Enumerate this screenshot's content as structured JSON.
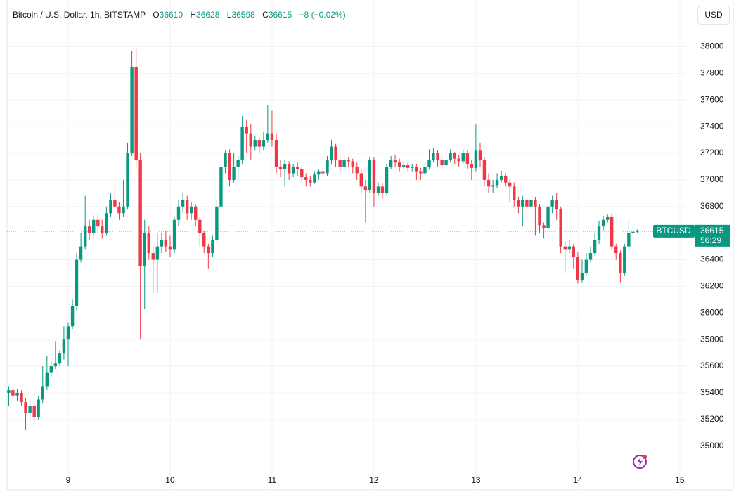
{
  "chart_data": {
    "type": "candlestick",
    "title": "Bitcoin / U.S. Dollar, 1h, BITSTAMP",
    "ohlc_labels": [
      "O",
      "H",
      "L",
      "C"
    ],
    "change": "−8 (−0.02%)",
    "currency": "USD",
    "symbol_tag": "BTCUSD",
    "countdown": "56:29",
    "up_color": "#089981",
    "down_color": "#f23645",
    "grid": true,
    "xlim": [
      8.4,
      15.07
    ],
    "xticks": [
      9,
      10,
      11,
      12,
      13,
      14,
      15
    ],
    "ylim": [
      34840,
      38140
    ],
    "yticks": [
      35000,
      35200,
      35400,
      35600,
      35800,
      36000,
      36200,
      36400,
      36600,
      36800,
      37000,
      37200,
      37400,
      37600,
      37800,
      38000
    ],
    "x": [
      8.417,
      8.458,
      8.5,
      8.542,
      8.583,
      8.625,
      8.667,
      8.708,
      8.75,
      8.792,
      8.833,
      8.875,
      8.917,
      8.958,
      9,
      9.042,
      9.083,
      9.125,
      9.167,
      9.208,
      9.25,
      9.292,
      9.333,
      9.375,
      9.417,
      9.458,
      9.5,
      9.542,
      9.583,
      9.625,
      9.667,
      9.708,
      9.75,
      9.792,
      9.833,
      9.875,
      9.917,
      9.958,
      10,
      10.042,
      10.083,
      10.125,
      10.167,
      10.208,
      10.25,
      10.292,
      10.333,
      10.375,
      10.417,
      10.458,
      10.5,
      10.542,
      10.583,
      10.625,
      10.667,
      10.708,
      10.75,
      10.792,
      10.833,
      10.875,
      10.917,
      10.958,
      11,
      11.042,
      11.083,
      11.125,
      11.167,
      11.208,
      11.25,
      11.292,
      11.333,
      11.375,
      11.417,
      11.458,
      11.5,
      11.542,
      11.583,
      11.625,
      11.667,
      11.708,
      11.75,
      11.792,
      11.833,
      11.875,
      11.917,
      11.958,
      12,
      12.042,
      12.083,
      12.125,
      12.167,
      12.208,
      12.25,
      12.292,
      12.333,
      12.375,
      12.417,
      12.458,
      12.5,
      12.542,
      12.583,
      12.625,
      12.667,
      12.708,
      12.75,
      12.792,
      12.833,
      12.875,
      12.917,
      12.958,
      13,
      13.042,
      13.083,
      13.125,
      13.167,
      13.208,
      13.25,
      13.292,
      13.333,
      13.375,
      13.417,
      13.458,
      13.5,
      13.542,
      13.583,
      13.625,
      13.667,
      13.708,
      13.75,
      13.792,
      13.833,
      13.875,
      13.917,
      13.958,
      14,
      14.042,
      14.083,
      14.125,
      14.167,
      14.208,
      14.25,
      14.292,
      14.333,
      14.375,
      14.417,
      14.458,
      14.5,
      14.542,
      14.583
    ],
    "open": [
      35400,
      35420,
      35380,
      35400,
      35330,
      35250,
      35300,
      35220,
      35350,
      35450,
      35550,
      35600,
      35620,
      35700,
      35800,
      35900,
      36050,
      36400,
      36500,
      36650,
      36600,
      36700,
      36650,
      36600,
      36750,
      36850,
      36800,
      36750,
      36800,
      37200,
      37850,
      37150,
      36350,
      36600,
      36450,
      36400,
      36500,
      36550,
      36500,
      36480,
      36700,
      36800,
      36850,
      36750,
      36800,
      36700,
      36600,
      36500,
      36450,
      36550,
      36800,
      37100,
      37200,
      37000,
      37100,
      37150,
      37400,
      37350,
      37250,
      37300,
      37250,
      37300,
      37350,
      37300,
      37100,
      37080,
      37120,
      37050,
      37100,
      37080,
      37020,
      37000,
      36980,
      37040,
      37060,
      37050,
      37150,
      37250,
      37150,
      37100,
      37150,
      37140,
      37100,
      37050,
      36950,
      36920,
      37150,
      36900,
      36950,
      36900,
      37100,
      37150,
      37130,
      37100,
      37110,
      37090,
      37100,
      37060,
      37050,
      37100,
      37150,
      37200,
      37150,
      37110,
      37150,
      37200,
      37160,
      37140,
      37200,
      37120,
      37090,
      37220,
      37150,
      37000,
      36950,
      36960,
      37000,
      37030,
      36980,
      36950,
      36850,
      36800,
      36850,
      36800,
      36850,
      36800,
      36660,
      36640,
      36800,
      36850,
      36780,
      36500,
      36480,
      36500,
      36420,
      36250,
      36300,
      36400,
      36450,
      36550,
      36650,
      36700,
      36720,
      36500,
      36450,
      36300,
      36500,
      36600,
      36610
    ],
    "high": [
      35450,
      35440,
      35430,
      35420,
      35360,
      35350,
      35320,
      35380,
      35600,
      35680,
      35640,
      35790,
      35720,
      35900,
      35930,
      36100,
      36450,
      36600,
      36880,
      36700,
      36730,
      36750,
      36700,
      36800,
      36900,
      36950,
      36830,
      37000,
      37280,
      37970,
      37980,
      37200,
      36700,
      36650,
      36500,
      36600,
      36600,
      36620,
      36580,
      36720,
      36850,
      36900,
      36880,
      36830,
      36820,
      36720,
      36620,
      36520,
      36580,
      36850,
      37150,
      37220,
      37230,
      37200,
      37180,
      37480,
      37450,
      37420,
      37330,
      37320,
      37360,
      37560,
      37520,
      37350,
      37150,
      37150,
      37140,
      37120,
      37130,
      37100,
      37050,
      37030,
      37060,
      37080,
      37090,
      37180,
      37300,
      37270,
      37180,
      37180,
      37170,
      37160,
      37130,
      37080,
      37000,
      37170,
      37170,
      36980,
      36980,
      37120,
      37180,
      37190,
      37160,
      37140,
      37130,
      37120,
      37120,
      37090,
      37130,
      37230,
      37240,
      37220,
      37180,
      37200,
      37230,
      37210,
      37190,
      37230,
      37220,
      37150,
      37420,
      37280,
      37170,
      37050,
      37000,
      37050,
      37070,
      37050,
      37000,
      36980,
      36870,
      36880,
      36860,
      36920,
      36870,
      36820,
      36680,
      36830,
      36880,
      36900,
      36800,
      36540,
      36550,
      36520,
      36460,
      36400,
      36450,
      36500,
      36600,
      36690,
      36730,
      36740,
      36750,
      36520,
      36470,
      36520,
      36700,
      36690,
      36628
    ],
    "low": [
      35300,
      35350,
      35340,
      35300,
      35120,
      35200,
      35190,
      35200,
      35320,
      35420,
      35520,
      35580,
      35600,
      35650,
      35600,
      35880,
      36020,
      36380,
      36480,
      36550,
      36560,
      36600,
      36560,
      36580,
      36720,
      36780,
      36700,
      36720,
      36780,
      37180,
      37100,
      35800,
      36030,
      36400,
      36150,
      36150,
      36450,
      36460,
      36420,
      36450,
      36650,
      36750,
      36700,
      36700,
      36650,
      36500,
      36450,
      36330,
      36420,
      36530,
      36780,
      37050,
      36950,
      36980,
      37000,
      37120,
      37200,
      37150,
      37220,
      37200,
      37220,
      37280,
      37250,
      37050,
      37020,
      36950,
      37000,
      37020,
      37030,
      36980,
      36950,
      36950,
      36970,
      37000,
      37020,
      37030,
      37120,
      37100,
      37050,
      37080,
      37100,
      37050,
      37000,
      36900,
      36680,
      36900,
      36800,
      36880,
      36860,
      36880,
      37080,
      37100,
      37060,
      37080,
      37060,
      37060,
      37000,
      37000,
      37030,
      37080,
      37130,
      37100,
      37080,
      37090,
      37130,
      37120,
      37100,
      37120,
      37080,
      37000,
      37060,
      37100,
      36950,
      36900,
      36900,
      36940,
      36980,
      36950,
      36830,
      36800,
      36750,
      36650,
      36700,
      36780,
      36580,
      36600,
      36560,
      36620,
      36750,
      36700,
      36450,
      36300,
      36450,
      36330,
      36220,
      36230,
      36280,
      36380,
      36430,
      36520,
      36620,
      36680,
      36480,
      36400,
      36230,
      36280,
      36480,
      36590,
      36598
    ],
    "close": [
      35420,
      35380,
      35400,
      35330,
      35250,
      35300,
      35220,
      35350,
      35450,
      35550,
      35600,
      35620,
      35700,
      35800,
      35900,
      36050,
      36400,
      36500,
      36650,
      36600,
      36700,
      36650,
      36600,
      36750,
      36850,
      36800,
      36750,
      36800,
      37200,
      37850,
      37150,
      36350,
      36600,
      36450,
      36400,
      36500,
      36550,
      36500,
      36480,
      36700,
      36800,
      36850,
      36750,
      36800,
      36700,
      36600,
      36500,
      36450,
      36550,
      36800,
      37100,
      37200,
      37000,
      37100,
      37150,
      37400,
      37350,
      37250,
      37300,
      37250,
      37300,
      37350,
      37300,
      37100,
      37080,
      37120,
      37050,
      37100,
      37080,
      37020,
      37000,
      36980,
      37040,
      37060,
      37050,
      37150,
      37250,
      37150,
      37100,
      37150,
      37140,
      37100,
      37050,
      36950,
      36920,
      37150,
      36900,
      36950,
      36900,
      37100,
      37150,
      37130,
      37100,
      37110,
      37090,
      37100,
      37060,
      37050,
      37100,
      37150,
      37200,
      37150,
      37110,
      37150,
      37200,
      37160,
      37140,
      37200,
      37120,
      37090,
      37220,
      37150,
      37000,
      36950,
      36960,
      37000,
      37030,
      36980,
      36950,
      36850,
      36800,
      36850,
      36800,
      36850,
      36800,
      36660,
      36640,
      36800,
      36850,
      36780,
      36500,
      36480,
      36500,
      36420,
      36250,
      36300,
      36400,
      36450,
      36550,
      36650,
      36700,
      36720,
      36500,
      36450,
      36300,
      36500,
      36600,
      36610,
      36615
    ]
  }
}
